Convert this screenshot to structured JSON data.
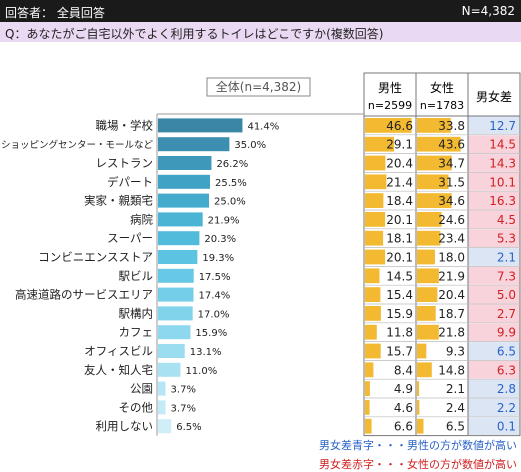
{
  "header": {
    "respondents": "回答者： 全員回答",
    "n_total": "N=4,382"
  },
  "question": "Q：あなたがご自宅以外でよく利用するトイレはどこですか(複数回答)",
  "legend_box": "全体(n=4,382)",
  "columns": {
    "male": "男性",
    "male_n": "n=2599",
    "female": "女性",
    "female_n": "n=1783",
    "diff": "男女差"
  },
  "notes": {
    "blue": "男女差青字・・・男性の方が数値が高い",
    "red": "男女差赤字・・・女性の方が数値が高い"
  },
  "colors": {
    "blue_text": "#2a62c8",
    "red_text": "#d12020",
    "blue_bg": "#dbe5f4",
    "red_bg": "#f8d3dc",
    "gold": "#f2b21b"
  },
  "chart_data": {
    "type": "bar",
    "orientation": "horizontal",
    "categories": [
      "職場・学校",
      "ショッピングセンター・モールなど",
      "レストラン",
      "デパート",
      "実家・親類宅",
      "病院",
      "スーパー",
      "コンビニエンスストア",
      "駅ビル",
      "高速道路のサービスエリア",
      "駅構内",
      "カフェ",
      "オフィスビル",
      "友人・知人宅",
      "公園",
      "その他",
      "利用しない"
    ],
    "series": [
      {
        "values": [
          41.4,
          35.0,
          26.2,
          25.5,
          25.0,
          21.9,
          20.3,
          19.3,
          17.5,
          17.4,
          17.0,
          15.9,
          13.1,
          11.0,
          3.7,
          3.7,
          6.5
        ]
      }
    ],
    "value_labels": [
      "41.4%",
      "35.0%",
      "26.2%",
      "25.5%",
      "25.0%",
      "21.9%",
      "20.3%",
      "19.3%",
      "17.5%",
      "17.4%",
      "17.0%",
      "15.9%",
      "13.1%",
      "11.0%",
      "3.7%",
      "3.7%",
      "6.5%"
    ],
    "xlim": [
      0,
      50
    ],
    "table": {
      "male": [
        46.6,
        29.1,
        20.4,
        21.4,
        18.4,
        20.1,
        18.1,
        20.1,
        14.5,
        15.4,
        15.9,
        11.8,
        15.7,
        8.4,
        4.9,
        4.6,
        6.6
      ],
      "male_labels": [
        "46.6",
        "29.1",
        "20.4",
        "21.4",
        "18.4",
        "20.1",
        "18.1",
        "20.1",
        "14.5",
        "15.4",
        "15.9",
        "11.8",
        "15.7",
        "8.4",
        "4.9",
        "4.6",
        "6.6"
      ],
      "female": [
        33.8,
        43.6,
        34.7,
        31.5,
        34.6,
        24.6,
        23.4,
        18.0,
        21.9,
        20.4,
        18.7,
        21.8,
        9.3,
        14.8,
        2.1,
        2.4,
        6.5
      ],
      "female_labels": [
        "33.8",
        "43.6",
        "34.7",
        "31.5",
        "34.6",
        "24.6",
        "23.4",
        "18.0",
        "21.9",
        "20.4",
        "18.7",
        "21.8",
        "9.3",
        "14.8",
        "2.1",
        "2.4",
        "6.5"
      ],
      "diff_labels": [
        "12.7",
        "14.5",
        "14.3",
        "10.1",
        "16.3",
        "4.5",
        "5.3",
        "2.1",
        "7.3",
        "5.0",
        "2.7",
        "9.9",
        "6.5",
        "6.3",
        "2.8",
        "2.2",
        "0.1"
      ],
      "diff_sign": [
        "male",
        "female",
        "female",
        "female",
        "female",
        "female",
        "female",
        "male",
        "female",
        "female",
        "female",
        "female",
        "male",
        "female",
        "male",
        "male",
        "male"
      ]
    }
  }
}
